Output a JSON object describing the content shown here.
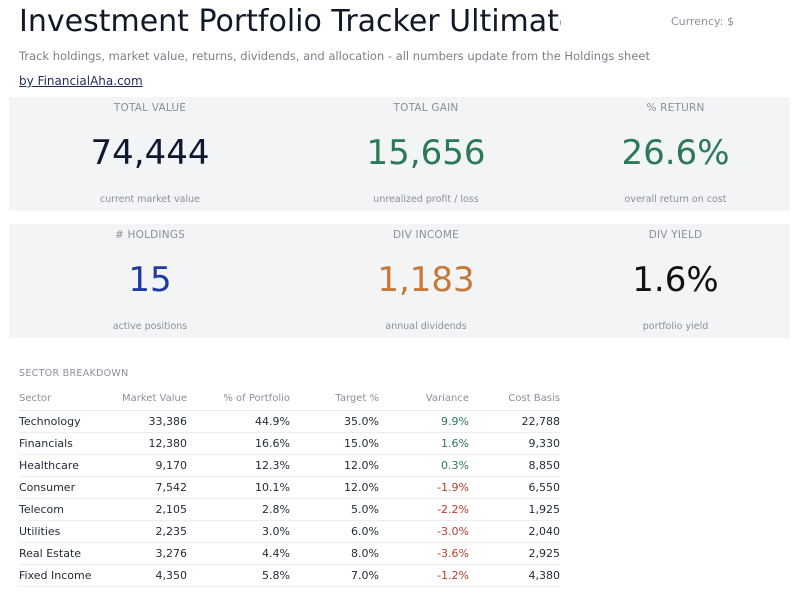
{
  "header": {
    "title": "Investment Portfolio Tracker Ultimate",
    "currency": "Currency: $",
    "subtitle": "Track holdings, market value, returns, dividends, and allocation - all numbers update from the Holdings sheet",
    "byline": "by FinancialAha.com"
  },
  "colors": {
    "dark": "#0f1733",
    "green": "#2a7a56",
    "blue": "#1f3aa0",
    "orange": "#c57a3a",
    "black": "#111111",
    "negative": "#c0392b",
    "card_bg": "#f3f4f6"
  },
  "kpis_row1": [
    {
      "label": "TOTAL VALUE",
      "value": "74,444",
      "caption": "current market value"
    },
    {
      "label": "TOTAL GAIN",
      "value": "15,656",
      "caption": "unrealized profit / loss"
    },
    {
      "label": "% RETURN",
      "value": "26.6%",
      "caption": "overall return on cost"
    }
  ],
  "kpis_row2": [
    {
      "label": "# HOLDINGS",
      "value": "15",
      "caption": "active positions"
    },
    {
      "label": "DIV INCOME",
      "value": "1,183",
      "caption": "annual dividends"
    },
    {
      "label": "DIV YIELD",
      "value": "1.6%",
      "caption": "portfolio yield"
    }
  ],
  "sector": {
    "title": "SECTOR BREAKDOWN",
    "columns": [
      "Sector",
      "Market Value",
      "% of Portfolio",
      "Target %",
      "Variance",
      "Cost Basis"
    ],
    "rows": [
      [
        "Technology",
        "33,386",
        "44.9%",
        "35.0%",
        "9.9%",
        "22,788"
      ],
      [
        "Financials",
        "12,380",
        "16.6%",
        "15.0%",
        "1.6%",
        "9,330"
      ],
      [
        "Healthcare",
        "9,170",
        "12.3%",
        "12.0%",
        "0.3%",
        "8,850"
      ],
      [
        "Consumer",
        "7,542",
        "10.1%",
        "12.0%",
        "-1.9%",
        "6,550"
      ],
      [
        "Telecom",
        "2,105",
        "2.8%",
        "5.0%",
        "-2.2%",
        "1,925"
      ],
      [
        "Utilities",
        "2,235",
        "3.0%",
        "6.0%",
        "-3.0%",
        "2,040"
      ],
      [
        "Real Estate",
        "3,276",
        "4.4%",
        "8.0%",
        "-3.6%",
        "2,925"
      ],
      [
        "Fixed Income",
        "4,350",
        "5.8%",
        "7.0%",
        "-1.2%",
        "4,380"
      ]
    ]
  }
}
